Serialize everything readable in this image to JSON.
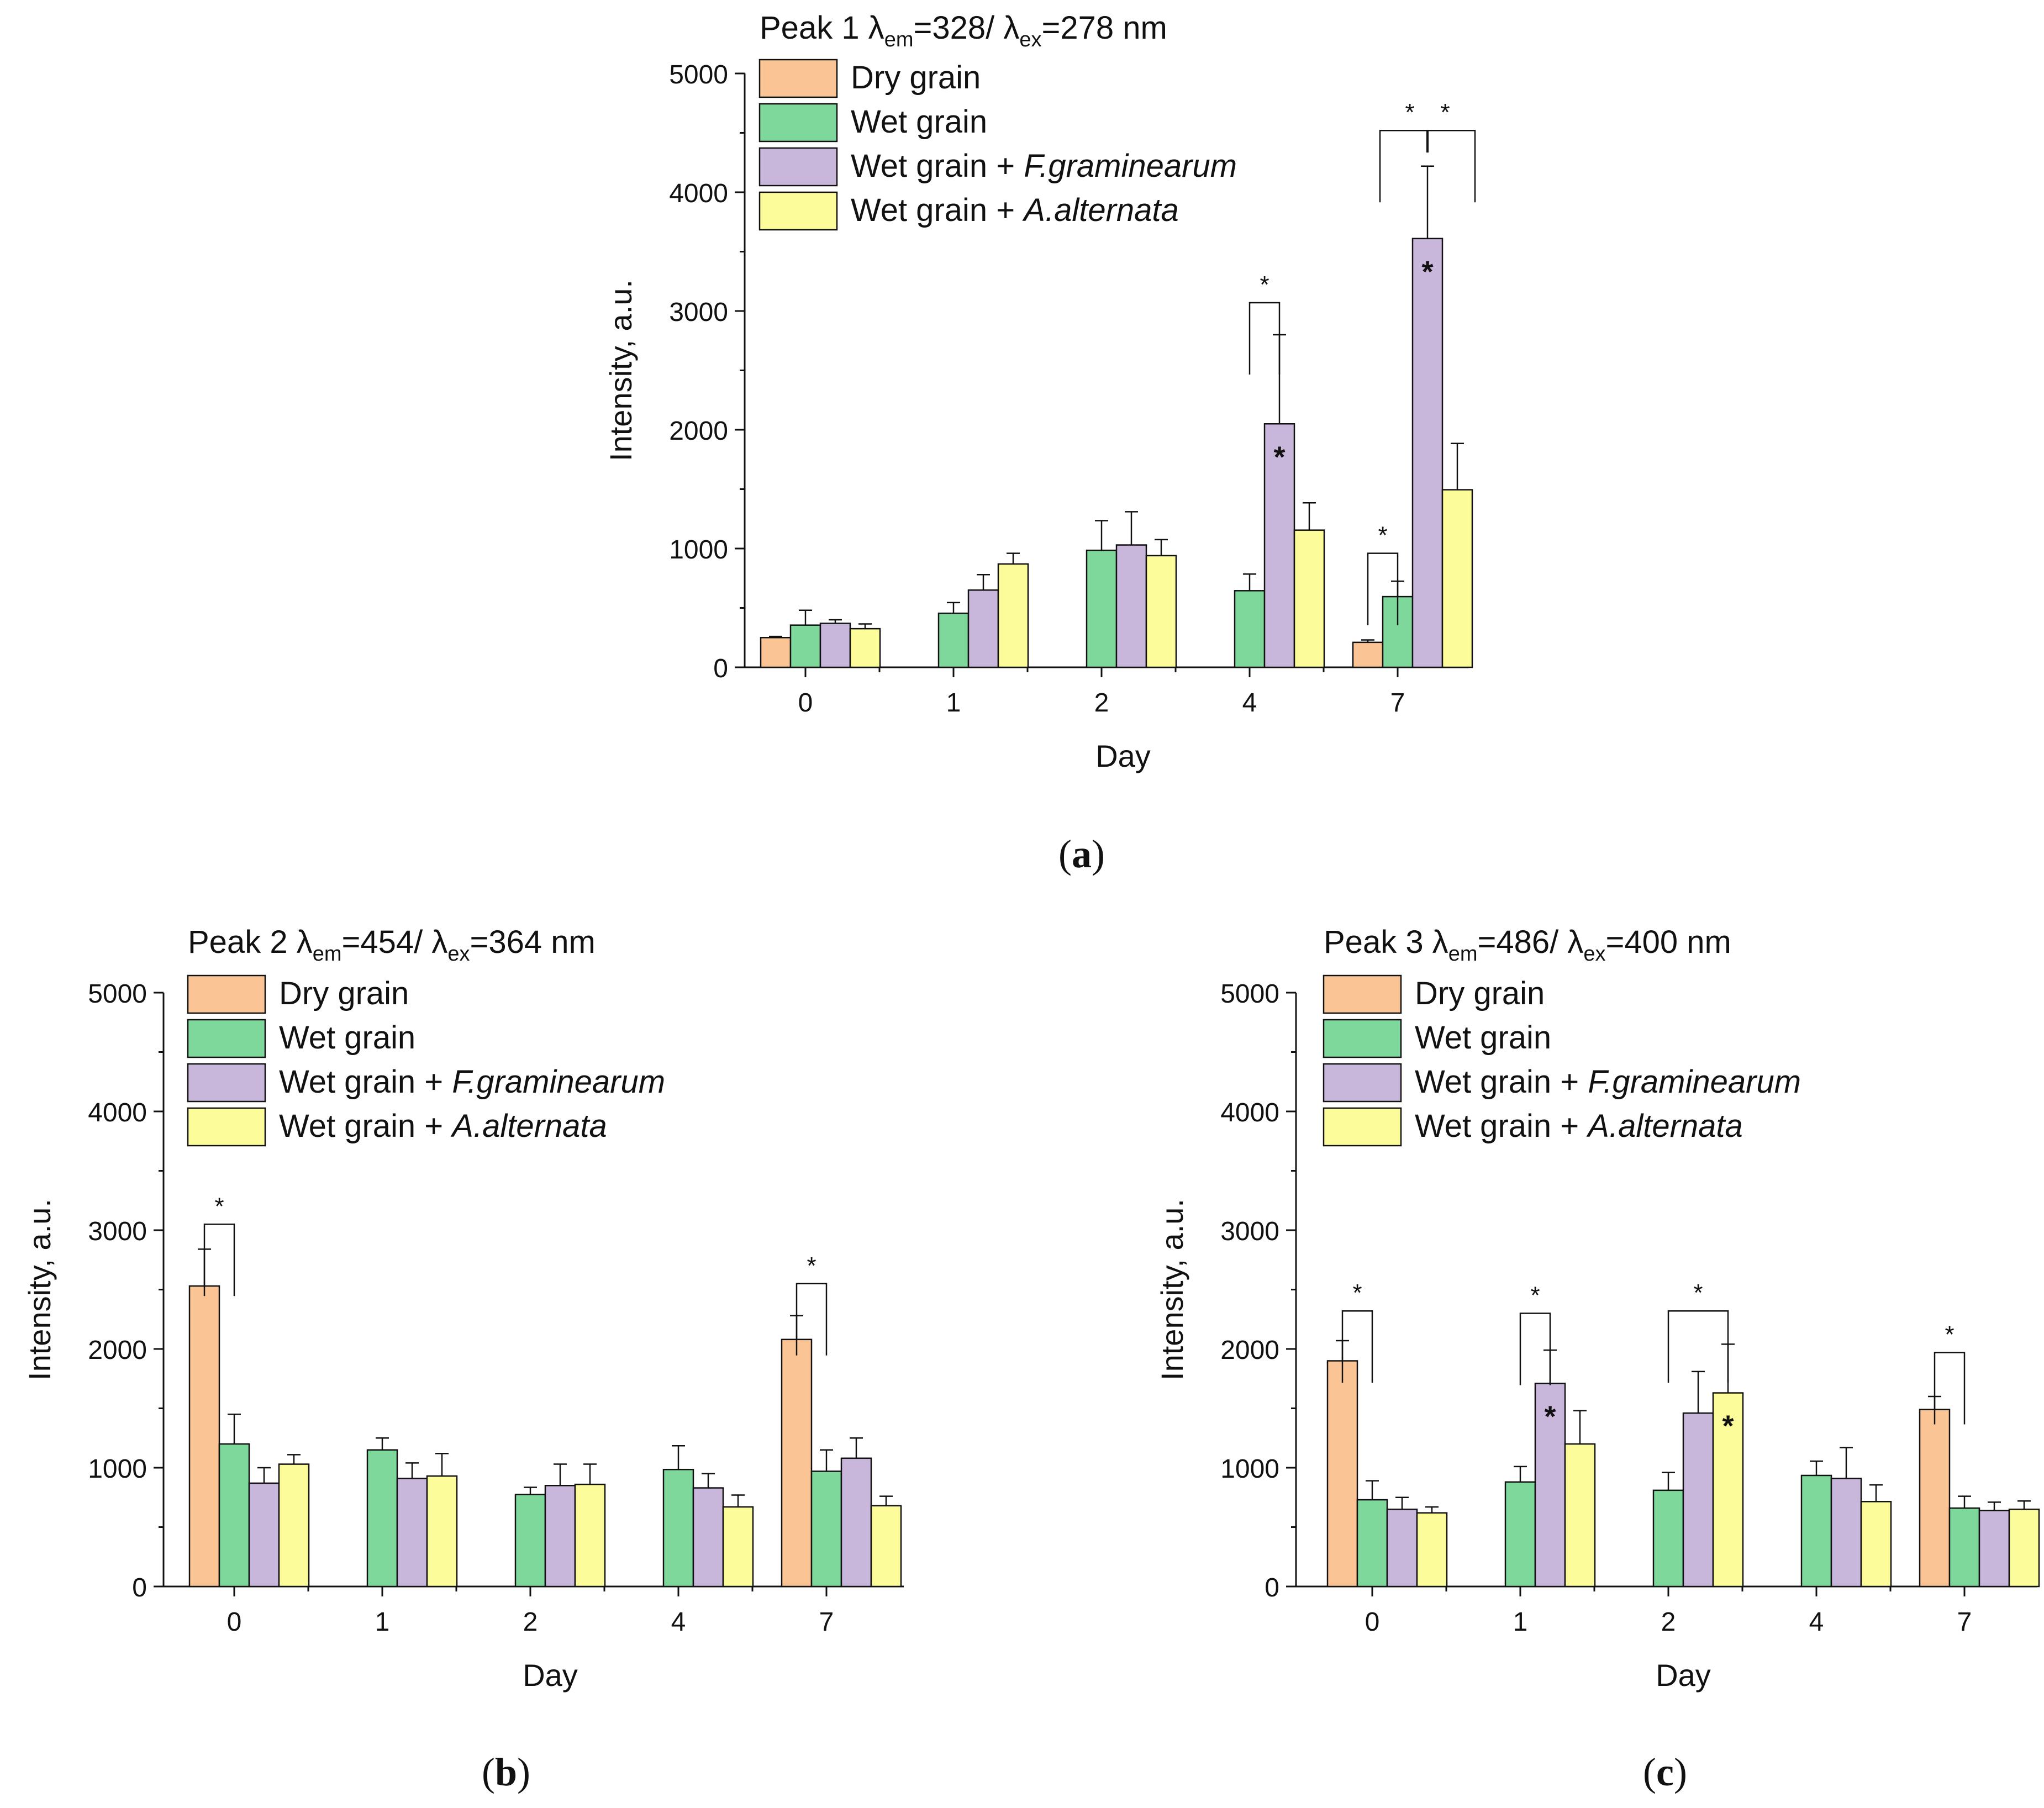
{
  "chart_data": [
    {
      "type": "bar",
      "panel_label": "a",
      "title": {
        "prefix": "Peak 1 λ",
        "sub1": "em",
        "mid": "=328/ λ",
        "sub2": "ex",
        "suffix": "=278 nm"
      },
      "xlabel": "Day",
      "ylabel": "Intensity, a.u.",
      "ylim": [
        0,
        5000
      ],
      "yticks": [
        0,
        1000,
        2000,
        3000,
        4000,
        5000
      ],
      "categories": [
        "0",
        "1",
        "2",
        "4",
        "7"
      ],
      "series": [
        {
          "name": "Dry grain",
          "italic": "",
          "values": [
            250,
            null,
            null,
            null,
            210
          ],
          "errors": [
            10,
            null,
            null,
            null,
            20
          ]
        },
        {
          "name": "Wet grain",
          "italic": "",
          "values": [
            355,
            455,
            985,
            645,
            595
          ],
          "errors": [
            125,
            90,
            250,
            140,
            130
          ]
        },
        {
          "name": "Wet grain + ",
          "italic": "F.graminearum",
          "values": [
            370,
            650,
            1030,
            2050,
            3610
          ],
          "errors": [
            30,
            130,
            280,
            750,
            610
          ]
        },
        {
          "name": "Wet grain + ",
          "italic": "A.alternata",
          "values": [
            325,
            870,
            940,
            1155,
            1495
          ],
          "errors": [
            40,
            90,
            135,
            230,
            390
          ]
        }
      ],
      "annotations": [
        {
          "category": 3,
          "from": 1,
          "to": 2,
          "top": 3070,
          "label": "*"
        },
        {
          "category": 4,
          "from": 0,
          "to": 1,
          "top": 960,
          "label": "*"
        },
        {
          "category": 4,
          "multi": true,
          "from": 1,
          "to": 3,
          "mid": 2,
          "top": 4520,
          "labels": [
            "*",
            "*"
          ]
        }
      ],
      "bar_marks": [
        {
          "category": 3,
          "series": 2,
          "label": "*"
        },
        {
          "category": 4,
          "series": 2,
          "label": "*"
        }
      ],
      "legend_position": "top-left"
    },
    {
      "type": "bar",
      "panel_label": "b",
      "title": {
        "prefix": "Peak 2 λ",
        "sub1": "em",
        "mid": "=454/ λ",
        "sub2": "ex",
        "suffix": "=364 nm"
      },
      "xlabel": "Day",
      "ylabel": "Intensity, a.u.",
      "ylim": [
        0,
        5000
      ],
      "yticks": [
        0,
        1000,
        2000,
        3000,
        4000,
        5000
      ],
      "categories": [
        "0",
        "1",
        "2",
        "4",
        "7"
      ],
      "series": [
        {
          "name": "Dry grain",
          "italic": "",
          "values": [
            2530,
            null,
            null,
            null,
            2080
          ],
          "errors": [
            310,
            null,
            null,
            null,
            200
          ]
        },
        {
          "name": "Wet grain",
          "italic": "",
          "values": [
            1200,
            1150,
            775,
            985,
            970
          ],
          "errors": [
            250,
            100,
            60,
            200,
            180
          ]
        },
        {
          "name": "Wet grain + ",
          "italic": "F.graminearum",
          "values": [
            870,
            910,
            850,
            830,
            1080
          ],
          "errors": [
            130,
            130,
            180,
            120,
            170
          ]
        },
        {
          "name": "Wet grain + ",
          "italic": "A.alternata",
          "values": [
            1030,
            930,
            860,
            670,
            680
          ],
          "errors": [
            80,
            190,
            170,
            100,
            80
          ]
        }
      ],
      "annotations": [
        {
          "category": 0,
          "from": 0,
          "to": 1,
          "top": 3050,
          "label": "*"
        },
        {
          "category": 4,
          "from": 0,
          "to": 1,
          "top": 2550,
          "label": "*"
        }
      ],
      "bar_marks": [],
      "legend_position": "top-left"
    },
    {
      "type": "bar",
      "panel_label": "c",
      "title": {
        "prefix": "Peak 3 λ",
        "sub1": "em",
        "mid": "=486/ λ",
        "sub2": "ex",
        "suffix": "=400 nm"
      },
      "xlabel": "Day",
      "ylabel": "Intensity, a.u.",
      "ylim": [
        0,
        5000
      ],
      "yticks": [
        0,
        1000,
        2000,
        3000,
        4000,
        5000
      ],
      "categories": [
        "0",
        "1",
        "2",
        "4",
        "7"
      ],
      "series": [
        {
          "name": "Dry grain",
          "italic": "",
          "values": [
            1900,
            null,
            null,
            null,
            1490
          ],
          "errors": [
            170,
            null,
            null,
            null,
            110
          ]
        },
        {
          "name": "Wet grain",
          "italic": "",
          "values": [
            730,
            880,
            810,
            935,
            660
          ],
          "errors": [
            160,
            130,
            150,
            120,
            100
          ]
        },
        {
          "name": "Wet grain + ",
          "italic": "F.graminearum",
          "values": [
            650,
            1710,
            1460,
            910,
            640
          ],
          "errors": [
            100,
            280,
            350,
            260,
            70
          ]
        },
        {
          "name": "Wet grain + ",
          "italic": "A.alternata",
          "values": [
            620,
            1200,
            1630,
            715,
            650
          ],
          "errors": [
            50,
            280,
            410,
            140,
            70
          ]
        }
      ],
      "annotations": [
        {
          "category": 0,
          "from": 0,
          "to": 1,
          "top": 2320,
          "label": "*"
        },
        {
          "category": 1,
          "from": 1,
          "to": 2,
          "top": 2300,
          "label": "*"
        },
        {
          "category": 2,
          "from": 1,
          "to": 3,
          "top": 2320,
          "label": "*"
        },
        {
          "category": 4,
          "from": 0,
          "to": 1,
          "top": 1970,
          "label": "*"
        }
      ],
      "bar_marks": [
        {
          "category": 1,
          "series": 2,
          "label": "*"
        },
        {
          "category": 2,
          "series": 3,
          "label": "*"
        }
      ],
      "legend_position": "top-left"
    }
  ],
  "colors": {
    "dry": "#fbc495",
    "wet": "#7ed89c",
    "fusarium": "#c8b7db",
    "alternaria": "#fdfc9b",
    "stroke": "#111111"
  }
}
